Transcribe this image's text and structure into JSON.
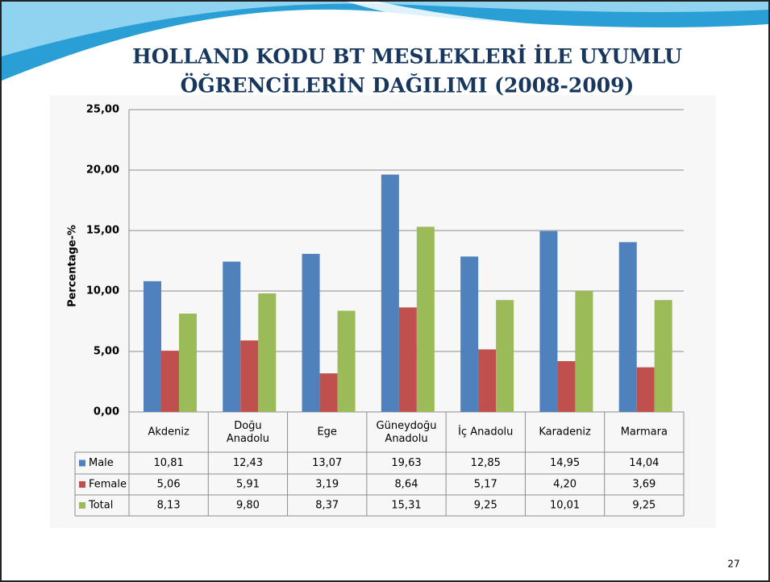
{
  "chart_data": {
    "type": "bar",
    "title": [
      "HOLLAND KODU BT MESLEKLERİ İLE UYUMLU",
      "ÖĞRENCİLERİN DAĞILIMI (2008-2009)"
    ],
    "y_label": "Percentage-%",
    "categories": [
      "Akdeniz",
      "Doğu\nAnadolu",
      "Ege",
      "Güneydoğu\nAnadolu",
      "İç Anadolu",
      "Karadeniz",
      "Marmara"
    ],
    "series": [
      {
        "name": "Male",
        "color": "#4f81bd",
        "values": [
          10.81,
          12.43,
          13.07,
          19.63,
          12.85,
          14.95,
          14.04
        ],
        "value_labels": [
          "10,81",
          "12,43",
          "13,07",
          "19,63",
          "12,85",
          "14,95",
          "14,04"
        ]
      },
      {
        "name": "Female",
        "color": "#c0504d",
        "values": [
          5.06,
          5.91,
          3.19,
          8.64,
          5.17,
          4.2,
          3.69
        ],
        "value_labels": [
          "5,06",
          "5,91",
          "3,19",
          "8,64",
          "5,17",
          "4,20",
          "3,69"
        ]
      },
      {
        "name": "Total",
        "color": "#9bbb59",
        "values": [
          8.13,
          9.8,
          8.37,
          15.31,
          9.25,
          10.01,
          9.25
        ],
        "value_labels": [
          "8,13",
          "9,80",
          "8,37",
          "15,31",
          "9,25",
          "10,01",
          "9,25"
        ]
      }
    ],
    "ylim": [
      0,
      25
    ],
    "yticks": [
      {
        "value": 0,
        "label": "0,00"
      },
      {
        "value": 5,
        "label": "5,00"
      },
      {
        "value": 10,
        "label": "10,00"
      },
      {
        "value": 15,
        "label": "15,00"
      },
      {
        "value": 20,
        "label": "20,00"
      },
      {
        "value": 25,
        "label": "25,00"
      }
    ],
    "grid": true,
    "page_number": "27"
  }
}
